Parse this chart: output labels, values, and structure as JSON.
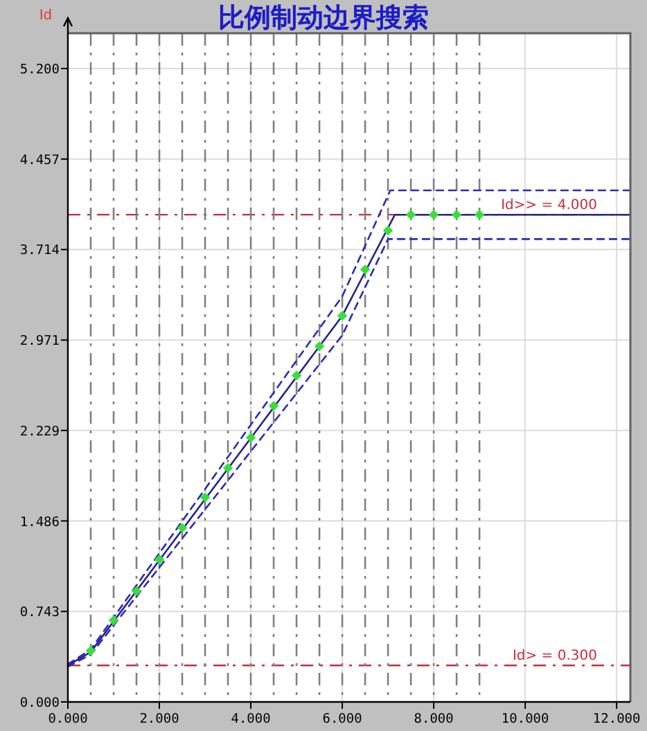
{
  "chart_data": {
    "type": "line",
    "title": "比例制动边界搜索",
    "ylabel": "Id",
    "xlim": [
      0,
      12.3
    ],
    "ylim": [
      0,
      5.49
    ],
    "xticks": [
      {
        "value": 0,
        "label": "0.000"
      },
      {
        "value": 2,
        "label": "2.000"
      },
      {
        "value": 4,
        "label": "4.000"
      },
      {
        "value": 6,
        "label": "6.000"
      },
      {
        "value": 8,
        "label": "8.000"
      },
      {
        "value": 10,
        "label": "10.000"
      },
      {
        "value": 12,
        "label": "12.000"
      }
    ],
    "yticks": [
      {
        "value": 0,
        "label": "0.000"
      },
      0.743,
      1.486,
      2.229,
      2.971,
      3.714,
      4.457,
      {
        "value": 5.2,
        "label": "5.200"
      }
    ],
    "grid": true,
    "series": [
      {
        "type": "line",
        "x": [
          0,
          0.5,
          6.0,
          7.15,
          12.3
        ],
        "values": [
          0.3,
          0.41,
          3.17,
          4.0,
          4.0
        ],
        "color": "#23238f",
        "line_style": "solid"
      },
      {
        "type": "line",
        "x": [
          0,
          0.5,
          6.0,
          7.05,
          12.3
        ],
        "values": [
          0.31,
          0.43,
          3.33,
          4.2,
          4.2
        ],
        "color": "#2b2bb8",
        "line_style": "dashed"
      },
      {
        "type": "line",
        "x": [
          0,
          0.5,
          6.0,
          7.0,
          12.3
        ],
        "values": [
          0.29,
          0.39,
          3.01,
          3.8,
          3.8
        ],
        "color": "#2b2bb8",
        "line_style": "dashed"
      },
      {
        "type": "scatter",
        "x": [
          0.5,
          1.0,
          1.5,
          2.0,
          2.5,
          3.0,
          3.5,
          4.0,
          4.5,
          5.0,
          5.5,
          6.0,
          6.5,
          7.0,
          7.5,
          8.0,
          8.5,
          9.0
        ],
        "values": [
          0.42,
          0.67,
          0.91,
          1.17,
          1.43,
          1.68,
          1.92,
          2.17,
          2.43,
          2.68,
          2.92,
          3.17,
          3.55,
          3.87,
          4.0,
          4.0,
          4.0,
          4.0
        ],
        "color": "#3ade3a",
        "marker": "diamond"
      }
    ],
    "ref_lines": [
      {
        "axis": "y",
        "value": 4.0,
        "label": "Id>> = 4.000",
        "color": "#cc2a3a",
        "line_style": "dashdot"
      },
      {
        "axis": "y",
        "value": 0.3,
        "label": "Id> = 0.300",
        "color": "#cc2a3a",
        "line_style": "dashdot"
      },
      {
        "axis": "x",
        "value": 0.5,
        "color": "#808080",
        "line_style": "dashdot"
      },
      {
        "axis": "x",
        "value": 1.0,
        "color": "#808080",
        "line_style": "dashdot"
      },
      {
        "axis": "x",
        "value": 1.5,
        "color": "#808080",
        "line_style": "dashdot"
      },
      {
        "axis": "x",
        "value": 2.0,
        "color": "#808080",
        "line_style": "dashdot"
      },
      {
        "axis": "x",
        "value": 2.5,
        "color": "#808080",
        "line_style": "dashdot"
      },
      {
        "axis": "x",
        "value": 3.0,
        "color": "#808080",
        "line_style": "dashdot"
      },
      {
        "axis": "x",
        "value": 3.5,
        "color": "#808080",
        "line_style": "dashdot"
      },
      {
        "axis": "x",
        "value": 4.0,
        "color": "#808080",
        "line_style": "dashdot"
      },
      {
        "axis": "x",
        "value": 4.5,
        "color": "#808080",
        "line_style": "dashdot"
      },
      {
        "axis": "x",
        "value": 5.0,
        "color": "#808080",
        "line_style": "dashdot"
      },
      {
        "axis": "x",
        "value": 5.5,
        "color": "#808080",
        "line_style": "dashdot"
      },
      {
        "axis": "x",
        "value": 6.0,
        "color": "#808080",
        "line_style": "dashdot"
      },
      {
        "axis": "x",
        "value": 6.5,
        "color": "#808080",
        "line_style": "dashdot"
      },
      {
        "axis": "x",
        "value": 7.0,
        "color": "#808080",
        "line_style": "dashdot"
      },
      {
        "axis": "x",
        "value": 7.5,
        "color": "#808080",
        "line_style": "dashdot"
      },
      {
        "axis": "x",
        "value": 8.0,
        "color": "#808080",
        "line_style": "dashdot"
      },
      {
        "axis": "x",
        "value": 8.5,
        "color": "#808080",
        "line_style": "dashdot"
      },
      {
        "axis": "x",
        "value": 9.0,
        "color": "#808080",
        "line_style": "dashdot"
      }
    ]
  }
}
